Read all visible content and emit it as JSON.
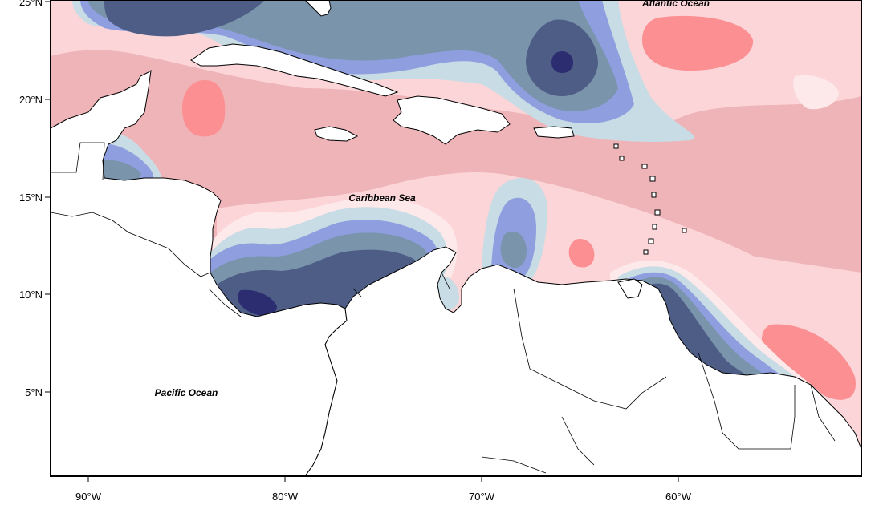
{
  "map": {
    "x_ticks": [
      "90°W",
      "80°W",
      "70°W",
      "60°W"
    ],
    "y_ticks": [
      "25°N",
      "20°N",
      "15°N",
      "10°N",
      "5°N"
    ],
    "labels": {
      "atlantic": "Atlantic Ocean",
      "caribbean": "Caribbean Sea",
      "pacific": "Pacific Ocean"
    },
    "colors": {
      "deep_blue": "#2c2c70",
      "dark_slate": "#4e5d86",
      "slate": "#7a94ac",
      "periwinkle": "#8f9ede",
      "light_blue": "#c7dce5",
      "faint": "#fde9ea",
      "light_pink": "#fbd5d8",
      "pink": "#efb4b8",
      "salmon": "#fb8f92",
      "land": "#ffffff"
    }
  }
}
